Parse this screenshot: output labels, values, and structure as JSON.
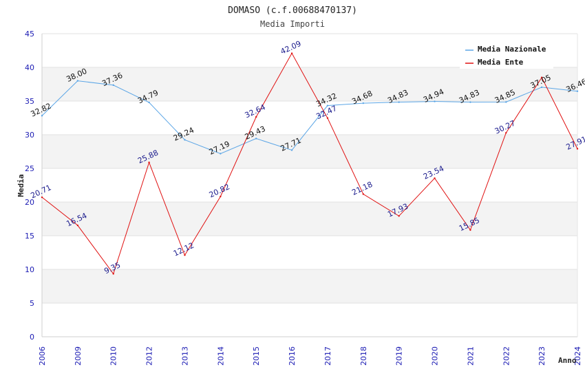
{
  "chart_data": {
    "type": "line",
    "title": "DOMASO (c.f.00688470137)",
    "subtitle": "Media Importi",
    "ylabel": "Media",
    "xlabel": "Anno",
    "ylim": [
      0,
      45
    ],
    "yticks": [
      0,
      5,
      10,
      15,
      20,
      25,
      30,
      35,
      40,
      45
    ],
    "categories": [
      "2006",
      "2009",
      "2010",
      "2012",
      "2013",
      "2014",
      "2015",
      "2016",
      "2017",
      "2018",
      "2019",
      "2020",
      "2021",
      "2022",
      "2023",
      "2024"
    ],
    "series": [
      {
        "name": "Media Nazionale",
        "color": "#5aa5e6",
        "values": [
          32.82,
          38.0,
          37.36,
          34.79,
          29.24,
          27.19,
          29.43,
          27.71,
          34.32,
          34.68,
          34.83,
          34.94,
          34.83,
          34.85,
          37.05,
          36.46
        ],
        "labels": [
          "32.82",
          "38.00",
          "37.36",
          "34.79",
          "29.24",
          "27.19",
          "29.43",
          "27.71",
          "34.32",
          "34.68",
          "34.83",
          "34.94",
          "34.83",
          "34.85",
          "37.05",
          "36.46"
        ]
      },
      {
        "name": "Media Ente",
        "color": "#e01010",
        "values": [
          20.71,
          16.54,
          9.35,
          25.88,
          12.12,
          20.82,
          32.64,
          42.09,
          32.47,
          21.18,
          17.93,
          23.54,
          15.85,
          30.27,
          38.5,
          27.91
        ],
        "labels": [
          "20.71",
          "16.54",
          "9.35",
          "25.88",
          "12.12",
          "20.82",
          "32.64",
          "42.09",
          "32.47",
          "21.18",
          "17.93",
          "23.54",
          "15.85",
          "30.27",
          "",
          "27.91"
        ]
      }
    ],
    "legend": "top-right",
    "grid": "alternating horizontal bands"
  }
}
